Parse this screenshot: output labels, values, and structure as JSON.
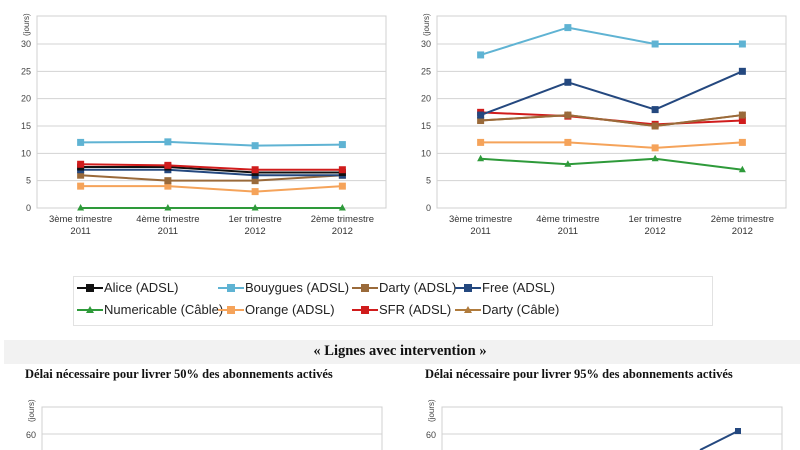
{
  "chart_data": [
    {
      "type": "line",
      "title": "",
      "xlabel": "",
      "ylabel": "(jours)",
      "ylim": [
        0,
        35
      ],
      "yticks": [
        0,
        5,
        10,
        15,
        20,
        25,
        30
      ],
      "grid": true,
      "categories": [
        [
          "3ème trimestre",
          "2011"
        ],
        [
          "4ème trimestre",
          "2011"
        ],
        [
          "1er trimestre",
          "2012"
        ],
        [
          "2ème trimestre",
          "2012"
        ]
      ],
      "series": [
        {
          "name": "Bouygues (ADSL)",
          "values": [
            12,
            12.1,
            11.4,
            11.6
          ]
        },
        {
          "name": "SFR (ADSL)",
          "values": [
            8,
            7.8,
            7,
            7
          ]
        },
        {
          "name": "Alice (ADSL)",
          "values": [
            7.5,
            7.5,
            6.5,
            6.5
          ]
        },
        {
          "name": "Free (ADSL)",
          "values": [
            7,
            7,
            6,
            6
          ]
        },
        {
          "name": "Darty (ADSL)",
          "values": [
            6,
            5,
            5,
            6
          ]
        },
        {
          "name": "Orange (ADSL)",
          "values": [
            4,
            4,
            3,
            4
          ]
        },
        {
          "name": "Numericable (Câble)",
          "values": [
            0,
            0,
            0,
            0
          ]
        }
      ]
    },
    {
      "type": "line",
      "title": "",
      "xlabel": "",
      "ylabel": "(jours)",
      "ylim": [
        0,
        35
      ],
      "yticks": [
        0,
        5,
        10,
        15,
        20,
        25,
        30
      ],
      "grid": true,
      "categories": [
        [
          "3ème trimestre",
          "2011"
        ],
        [
          "4ème trimestre",
          "2011"
        ],
        [
          "1er trimestre",
          "2012"
        ],
        [
          "2ème trimestre",
          "2012"
        ]
      ],
      "series": [
        {
          "name": "Bouygues (ADSL)",
          "values": [
            28,
            33,
            30,
            30
          ]
        },
        {
          "name": "Free (ADSL)",
          "values": [
            17,
            23,
            18,
            25
          ]
        },
        {
          "name": "Darty (ADSL)",
          "values": [
            16,
            17,
            15,
            17
          ]
        },
        {
          "name": "Darty (Câble)",
          "values": [
            16,
            17,
            15,
            17
          ]
        },
        {
          "name": "SFR (ADSL)",
          "values": [
            17.5,
            16.8,
            15.3,
            16
          ]
        },
        {
          "name": "Orange (ADSL)",
          "values": [
            12,
            12,
            11,
            12
          ]
        },
        {
          "name": "Numericable (Câble)",
          "values": [
            9,
            8,
            9,
            7
          ]
        }
      ]
    },
    {
      "type": "line",
      "title": "Délai nécessaire pour livrer 50% des abonnements activés",
      "ylabel": "(jours)",
      "yticks_visible": [
        60
      ],
      "series": []
    },
    {
      "type": "line",
      "title": "Délai nécessaire pour livrer 95% des abonnements activés",
      "ylabel": "(jours)",
      "yticks_visible": [
        60
      ],
      "series": [
        {
          "name": "Free (ADSL)",
          "values_visible": [
            62
          ],
          "note": "partially visible, last point ≈ 62"
        }
      ]
    }
  ],
  "series_styles": {
    "Alice (ADSL)": {
      "color": "#111111",
      "marker": "square"
    },
    "Bouygues (ADSL)": {
      "color": "#5fb3d3",
      "marker": "square"
    },
    "Darty (ADSL)": {
      "color": "#9a6a3a",
      "marker": "square"
    },
    "Free (ADSL)": {
      "color": "#24487f",
      "marker": "square"
    },
    "Numericable (Câble)": {
      "color": "#2e9a3a",
      "marker": "triangle"
    },
    "Orange (ADSL)": {
      "color": "#f5a35a",
      "marker": "square"
    },
    "SFR (ADSL)": {
      "color": "#d01c1c",
      "marker": "square"
    },
    "Darty (Câble)": {
      "color": "#b07b3c",
      "marker": "triangle"
    }
  },
  "legend": {
    "placement": "bottom-center",
    "items": [
      {
        "label": "Alice (ADSL)",
        "color": "#111111",
        "marker": "square"
      },
      {
        "label": "Bouygues (ADSL)",
        "color": "#5fb3d3",
        "marker": "square"
      },
      {
        "label": "Darty (ADSL)",
        "color": "#9a6a3a",
        "marker": "square"
      },
      {
        "label": "Free (ADSL)",
        "color": "#24487f",
        "marker": "square"
      },
      {
        "label": "Numericable (Câble)",
        "color": "#2e9a3a",
        "marker": "triangle"
      },
      {
        "label": "Orange (ADSL)",
        "color": "#f5a35a",
        "marker": "square"
      },
      {
        "label": "SFR (ADSL)",
        "color": "#d01c1c",
        "marker": "square"
      },
      {
        "label": "Darty (Câble)",
        "color": "#b07b3c",
        "marker": "triangle"
      }
    ]
  },
  "section": {
    "title": "« Lignes avec intervention »",
    "left_subtitle": "Délai nécessaire pour livrer 50% des abonnements activés",
    "right_subtitle": "Délai nécessaire pour livrer 95% des abonnements activés"
  }
}
